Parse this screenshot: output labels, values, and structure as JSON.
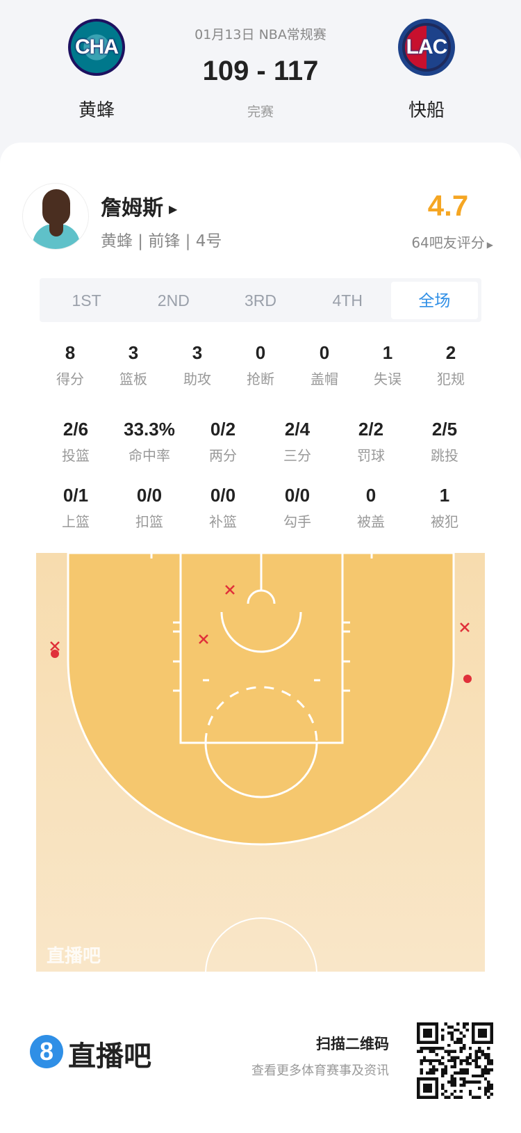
{
  "match": {
    "date_league": "01月13日 NBA常规赛",
    "score": "109 - 117",
    "status": "完赛",
    "home": {
      "abbr": "CHA",
      "name": "黄蜂"
    },
    "away": {
      "abbr": "LAC",
      "name": "快船"
    }
  },
  "player": {
    "name": "詹姆斯",
    "info": "黄蜂 | 前锋 | 4号",
    "rating": "4.7",
    "rating_label": "64吧友评分"
  },
  "tabs": [
    {
      "label": "1ST"
    },
    {
      "label": "2ND"
    },
    {
      "label": "3RD"
    },
    {
      "label": "4TH"
    },
    {
      "label": "全场",
      "active": true
    }
  ],
  "stats_row1": [
    {
      "v": "8",
      "l": "得分"
    },
    {
      "v": "3",
      "l": "篮板"
    },
    {
      "v": "3",
      "l": "助攻"
    },
    {
      "v": "0",
      "l": "抢断"
    },
    {
      "v": "0",
      "l": "盖帽"
    },
    {
      "v": "1",
      "l": "失误"
    },
    {
      "v": "2",
      "l": "犯规"
    }
  ],
  "stats_row2": [
    {
      "v": "2/6",
      "l": "投篮"
    },
    {
      "v": "33.3%",
      "l": "命中率"
    },
    {
      "v": "0/2",
      "l": "两分"
    },
    {
      "v": "2/4",
      "l": "三分"
    },
    {
      "v": "2/2",
      "l": "罚球"
    },
    {
      "v": "2/5",
      "l": "跳投"
    }
  ],
  "stats_row3": [
    {
      "v": "0/1",
      "l": "上篮"
    },
    {
      "v": "0/0",
      "l": "扣篮"
    },
    {
      "v": "0/0",
      "l": "补篮"
    },
    {
      "v": "0/0",
      "l": "勾手"
    },
    {
      "v": "0",
      "l": "被盖"
    },
    {
      "v": "1",
      "l": "被犯"
    }
  ],
  "court": {
    "watermark": "直播吧",
    "shots": [
      {
        "result": "miss",
        "zone": "paint-left-high"
      },
      {
        "result": "miss",
        "zone": "paint-left"
      },
      {
        "result": "miss",
        "zone": "left-corner-three"
      },
      {
        "result": "make",
        "zone": "left-corner-three"
      },
      {
        "result": "miss",
        "zone": "right-corner-three"
      },
      {
        "result": "make",
        "zone": "right-corner-three"
      }
    ]
  },
  "footer": {
    "brand": "直播吧",
    "logo_glyph": "8",
    "scan_title": "扫描二维码",
    "scan_sub": "查看更多体育赛事及资讯"
  },
  "colors": {
    "accent": "#2f8fe6",
    "rating": "#f5a623",
    "miss": "#e0303a",
    "court_inner": "#f5c76e",
    "court_outer": "#f8e2bd"
  }
}
